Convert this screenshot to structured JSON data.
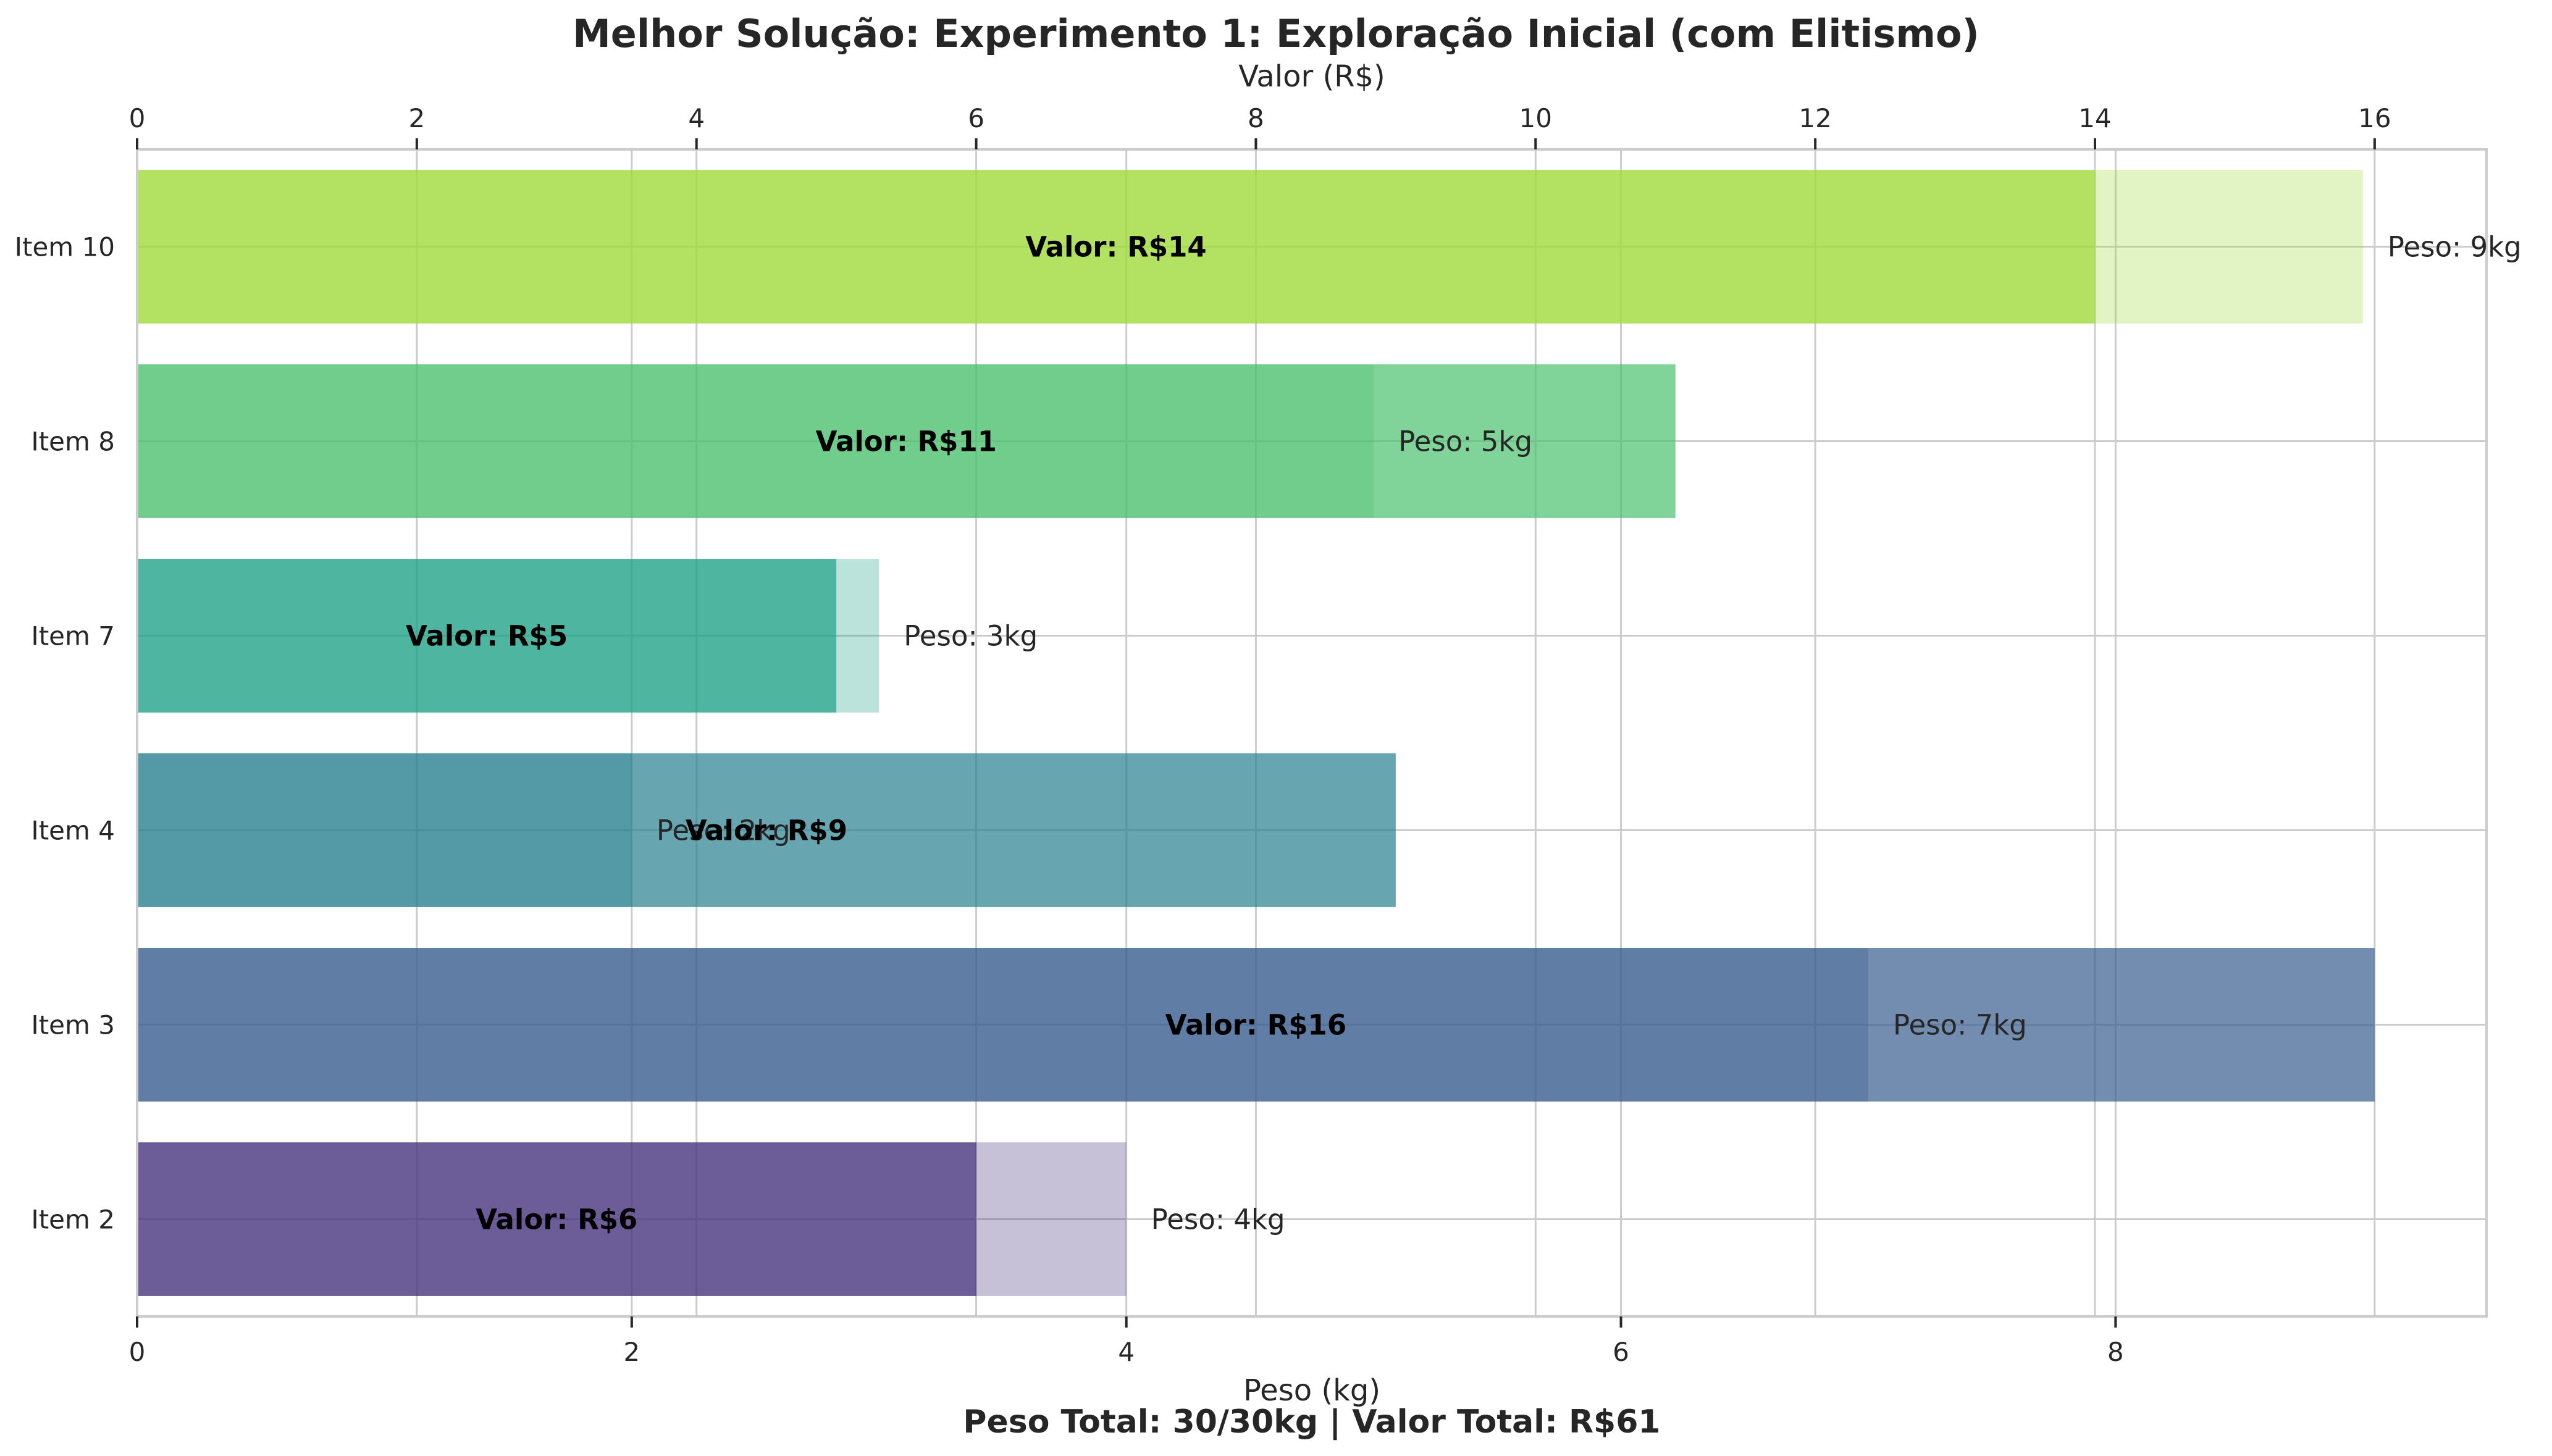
{
  "chart_data": {
    "type": "bar",
    "orientation": "horizontal",
    "title": "Melhor Solução: Experimento 1: Exploração Inicial (com Elitismo)",
    "xlabel_bottom": "Peso (kg)",
    "xlabel_top": "Valor (R$)",
    "xlim_bottom": [
      0,
      9.5
    ],
    "xlim_top": [
      0,
      16.8
    ],
    "xticks_bottom": [
      0,
      2,
      4,
      6,
      8
    ],
    "xticks_top": [
      0,
      2,
      4,
      6,
      8,
      10,
      12,
      14,
      16
    ],
    "grid": true,
    "categories": [
      "Item 10",
      "Item 8",
      "Item 7",
      "Item 4",
      "Item 3",
      "Item 2"
    ],
    "series": [
      {
        "axis": "bottom",
        "values": [
          9,
          5,
          3,
          2,
          7,
          4
        ],
        "labels": [
          "Peso: 9kg",
          "Peso: 5kg",
          "Peso: 3kg",
          "Peso: 2kg",
          "Peso: 7kg",
          "Peso: 4kg"
        ]
      },
      {
        "axis": "top",
        "values": [
          14,
          11,
          5,
          9,
          16,
          6
        ],
        "labels": [
          "Valor: R$14",
          "Valor: R$11",
          "Valor: R$5",
          "Valor: R$9",
          "Valor: R$16",
          "Valor: R$6"
        ]
      }
    ],
    "colors": [
      "#a0da39",
      "#4ac16d",
      "#1fa187",
      "#277f8e",
      "#365c8d",
      "#46327e"
    ],
    "footer": "Peso Total: 30/30kg | Valor Total: R$61"
  }
}
